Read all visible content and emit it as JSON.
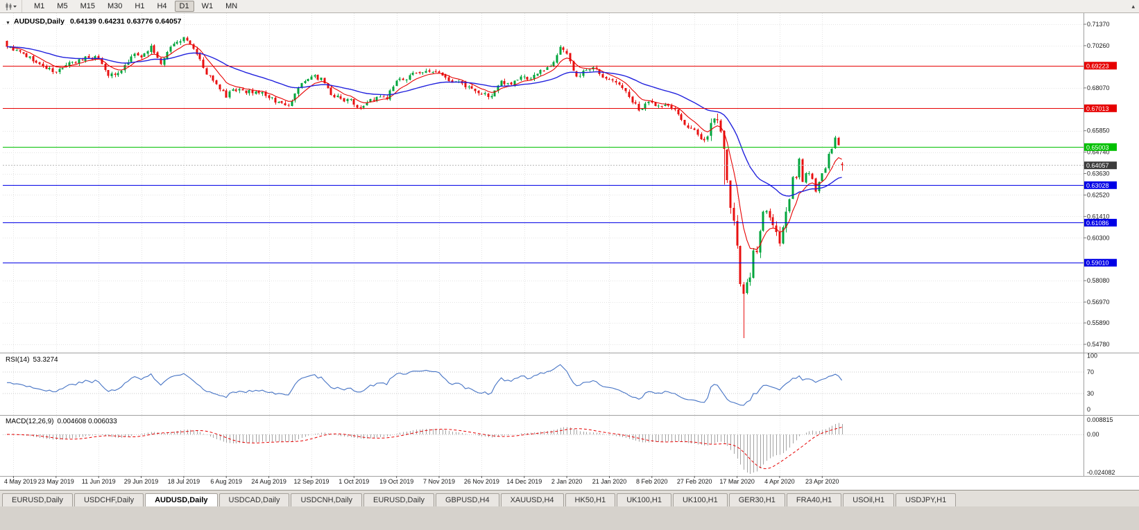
{
  "toolbar": {
    "periods": [
      "M1",
      "M5",
      "M15",
      "M30",
      "H1",
      "H4",
      "D1",
      "W1",
      "MN"
    ],
    "active_period": "D1",
    "expand_icon": "▴"
  },
  "main_chart": {
    "collapse_icon": "▼",
    "symbol_title": "AUDUSD,Daily",
    "ohlc_text": "0.64139 0.64231 0.63776 0.64057"
  },
  "rsi_panel": {
    "label": "RSI(14)",
    "value": "53.3274"
  },
  "macd_panel": {
    "label": "MACD(12,26,9)",
    "values": "0.004608 0.006033"
  },
  "tab_bar": {
    "active_index": 2,
    "items": [
      "EURUSD,Daily",
      "USDCHF,Daily",
      "AUDUSD,Daily",
      "USDCAD,Daily",
      "USDCNH,Daily",
      "EURUSD,Daily",
      "GBPUSD,H4",
      "XAUUSD,H4",
      "HK50,H1",
      "UK100,H1",
      "UK100,H1",
      "GER30,H1",
      "FRA40,H1",
      "USOil,H1",
      "USDJPY,H1"
    ]
  },
  "chart_data": {
    "type": "candlestick",
    "symbol": "AUDUSD",
    "timeframe": "Daily",
    "bar_count": 256,
    "grid_color": "#e3e3e3",
    "candle_up_color": "#00a53c",
    "candle_down_color": "#e81010",
    "y_axis_labels": [
      "0.71370",
      "0.70260",
      "0.68070",
      "0.65850",
      "0.64740",
      "0.63630",
      "0.62520",
      "0.61410",
      "0.60300",
      "0.58080",
      "0.56970",
      "0.55890",
      "0.54780"
    ],
    "x_labels": [
      "4 May 2019",
      "23 May 2019",
      "11 Jun 2019",
      "29 Jun 2019",
      "18 Jul 2019",
      "6 Aug 2019",
      "24 Aug 2019",
      "12 Sep 2019",
      "1 Oct 2019",
      "19 Oct 2019",
      "7 Nov 2019",
      "26 Nov 2019",
      "14 Dec 2019",
      "2 Jan 2020",
      "21 Jan 2020",
      "8 Feb 2020",
      "27 Feb 2020",
      "17 Mar 2020",
      "4 Apr 2020",
      "23 Apr 2020"
    ],
    "x_first_label_bar": 2,
    "x_label_step": 13,
    "levels": [
      {
        "price": 0.69223,
        "label": "0.69223",
        "color": "#e60000"
      },
      {
        "price": 0.67013,
        "label": "0.67013",
        "color": "#e60000"
      },
      {
        "price": 0.65003,
        "label": "0.65003",
        "color": "#00c000"
      },
      {
        "price": 0.63028,
        "label": "0.63028",
        "color": "#0000e6"
      },
      {
        "price": 0.61086,
        "label": "0.61086",
        "color": "#0000e6"
      },
      {
        "price": 0.5901,
        "label": "0.59010",
        "color": "#0000e6"
      }
    ],
    "current_price": {
      "value": 0.64057,
      "label": "0.64057",
      "badge_color": "#3c3c3c"
    },
    "moving_averages": [
      {
        "period": 8,
        "color": "#e60000"
      },
      {
        "period": 34,
        "color": "#2121dd"
      }
    ],
    "rsi": {
      "period": 14,
      "levels": [
        100,
        70,
        30,
        0
      ],
      "color": "#4472c4",
      "label": "RSI(14)",
      "value": "53.3274"
    },
    "macd": {
      "fast": 12,
      "slow": 26,
      "signal": 9,
      "axis_labels": [
        "0.008815",
        "0.00",
        "-0.024082"
      ],
      "histogram_color": "#a3a3a3",
      "signal_color": "#e60000",
      "label": "MACD(12,26,9)",
      "macd_value": "0.004608",
      "signal_value": "0.006033"
    },
    "last_bar_ohlc": [
      0.64139,
      0.64231,
      0.63776,
      0.64057
    ],
    "wick_overrides": [
      {
        "bar": 219,
        "low": 0.6305
      },
      {
        "bar": 225,
        "low": 0.551
      }
    ],
    "price_waypoints": [
      [
        0,
        0.702
      ],
      [
        2,
        0.7
      ],
      [
        5,
        0.6985
      ],
      [
        8,
        0.6945
      ],
      [
        12,
        0.6905
      ],
      [
        15,
        0.689
      ],
      [
        18,
        0.6925
      ],
      [
        21,
        0.6935
      ],
      [
        24,
        0.697
      ],
      [
        28,
        0.696
      ],
      [
        31,
        0.687
      ],
      [
        33,
        0.6875
      ],
      [
        36,
        0.6925
      ],
      [
        39,
        0.6985
      ],
      [
        41,
        0.6965
      ],
      [
        44,
        0.7025
      ],
      [
        47,
        0.693
      ],
      [
        50,
        0.702
      ],
      [
        54,
        0.707
      ],
      [
        57,
        0.701
      ],
      [
        60,
        0.691
      ],
      [
        63,
        0.6845
      ],
      [
        65,
        0.68
      ],
      [
        67,
        0.6757
      ],
      [
        69,
        0.68
      ],
      [
        72,
        0.6795
      ],
      [
        75,
        0.678
      ],
      [
        78,
        0.6785
      ],
      [
        80,
        0.6755
      ],
      [
        83,
        0.6735
      ],
      [
        86,
        0.6715
      ],
      [
        89,
        0.681
      ],
      [
        93,
        0.6865
      ],
      [
        96,
        0.686
      ],
      [
        99,
        0.677
      ],
      [
        102,
        0.675
      ],
      [
        105,
        0.675
      ],
      [
        107,
        0.6705
      ],
      [
        110,
        0.673
      ],
      [
        113,
        0.676
      ],
      [
        116,
        0.675
      ],
      [
        119,
        0.6845
      ],
      [
        122,
        0.685
      ],
      [
        125,
        0.6885
      ],
      [
        128,
        0.6895
      ],
      [
        131,
        0.689
      ],
      [
        134,
        0.686
      ],
      [
        137,
        0.684
      ],
      [
        140,
        0.681
      ],
      [
        143,
        0.679
      ],
      [
        145,
        0.6775
      ],
      [
        148,
        0.6765
      ],
      [
        151,
        0.6845
      ],
      [
        154,
        0.6825
      ],
      [
        157,
        0.6865
      ],
      [
        160,
        0.6855
      ],
      [
        163,
        0.69
      ],
      [
        166,
        0.692
      ],
      [
        169,
        0.702
      ],
      [
        171,
        0.6985
      ],
      [
        174,
        0.6865
      ],
      [
        177,
        0.69
      ],
      [
        180,
        0.6905
      ],
      [
        183,
        0.6855
      ],
      [
        187,
        0.6825
      ],
      [
        190,
        0.676
      ],
      [
        193,
        0.669
      ],
      [
        196,
        0.6735
      ],
      [
        199,
        0.6715
      ],
      [
        202,
        0.6715
      ],
      [
        205,
        0.667
      ],
      [
        208,
        0.66
      ],
      [
        211,
        0.6565
      ],
      [
        213,
        0.6535
      ],
      [
        215,
        0.6625
      ],
      [
        217,
        0.664
      ],
      [
        218,
        0.658
      ],
      [
        219,
        0.649
      ],
      [
        220,
        0.633
      ],
      [
        221,
        0.6185
      ],
      [
        222,
        0.612
      ],
      [
        223,
        0.599
      ],
      [
        224,
        0.579
      ],
      [
        225,
        0.574
      ],
      [
        226,
        0.58
      ],
      [
        227,
        0.5825
      ],
      [
        228,
        0.5965
      ],
      [
        229,
        0.5955
      ],
      [
        230,
        0.6065
      ],
      [
        231,
        0.6165
      ],
      [
        232,
        0.617
      ],
      [
        233,
        0.6135
      ],
      [
        234,
        0.6095
      ],
      [
        235,
        0.606
      ],
      [
        236,
        0.6
      ],
      [
        237,
        0.6085
      ],
      [
        238,
        0.6165
      ],
      [
        239,
        0.623
      ],
      [
        240,
        0.6345
      ],
      [
        241,
        0.634
      ],
      [
        242,
        0.644
      ],
      [
        243,
        0.632
      ],
      [
        244,
        0.6365
      ],
      [
        245,
        0.6365
      ],
      [
        246,
        0.6335
      ],
      [
        247,
        0.627
      ],
      [
        248,
        0.632
      ],
      [
        249,
        0.6365
      ],
      [
        250,
        0.639
      ],
      [
        251,
        0.6465
      ],
      [
        252,
        0.649
      ],
      [
        253,
        0.655
      ],
      [
        254,
        0.651
      ],
      [
        255,
        0.64057
      ]
    ]
  }
}
